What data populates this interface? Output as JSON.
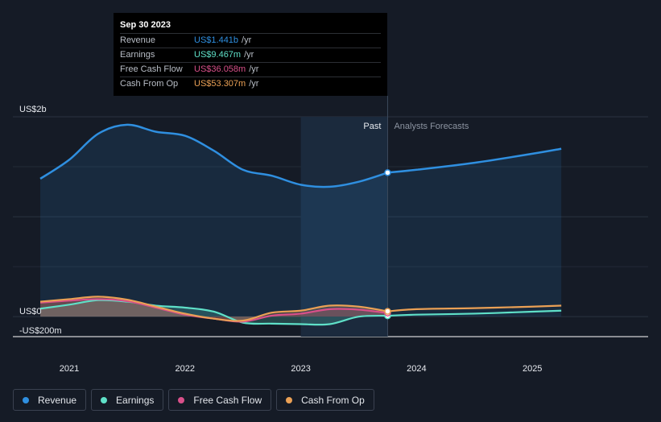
{
  "tooltip": {
    "date": "Sep 30 2023",
    "rows": [
      {
        "label": "Revenue",
        "value": "US$1.441b",
        "unit": "/yr",
        "color": "#2f8fe0"
      },
      {
        "label": "Earnings",
        "value": "US$9.467m",
        "unit": "/yr",
        "color": "#5fe0c8"
      },
      {
        "label": "Free Cash Flow",
        "value": "US$36.058m",
        "unit": "/yr",
        "color": "#d9508a"
      },
      {
        "label": "Cash From Op",
        "value": "US$53.307m",
        "unit": "/yr",
        "color": "#eaa055"
      }
    ]
  },
  "regions": {
    "past": "Past",
    "forecast": "Analysts Forecasts"
  },
  "legend": [
    {
      "label": "Revenue",
      "color": "#2f8fe0"
    },
    {
      "label": "Earnings",
      "color": "#5fe0c8"
    },
    {
      "label": "Free Cash Flow",
      "color": "#d9508a"
    },
    {
      "label": "Cash From Op",
      "color": "#eaa055"
    }
  ],
  "chart_data": {
    "type": "line",
    "y_unit": "US$ millions",
    "ylim": [
      -200,
      2000
    ],
    "y_tick_labels": [
      {
        "value": 2000,
        "label": "US$2b"
      },
      {
        "value": 0,
        "label": "US$0"
      },
      {
        "value": -200,
        "label": "-US$200m"
      }
    ],
    "x_tick_labels": [
      {
        "value": 2021.0,
        "label": "2021"
      },
      {
        "value": 2022.0,
        "label": "2022"
      },
      {
        "value": 2023.0,
        "label": "2023"
      },
      {
        "value": 2024.0,
        "label": "2024"
      },
      {
        "value": 2025.0,
        "label": "2025"
      }
    ],
    "xlim": [
      2020.9,
      2025.25
    ],
    "past_end": 2023.75,
    "highlight_start": 2023.0,
    "series": [
      {
        "name": "Revenue",
        "color": "#2f8fe0",
        "filled": true,
        "past": [
          [
            2020.75,
            1380
          ],
          [
            2021.0,
            1570
          ],
          [
            2021.25,
            1830
          ],
          [
            2021.5,
            1920
          ],
          [
            2021.75,
            1850
          ],
          [
            2022.0,
            1810
          ],
          [
            2022.25,
            1660
          ],
          [
            2022.5,
            1470
          ],
          [
            2022.75,
            1410
          ],
          [
            2023.0,
            1320
          ],
          [
            2023.25,
            1300
          ],
          [
            2023.5,
            1350
          ],
          [
            2023.75,
            1441
          ]
        ],
        "forecast": [
          [
            2023.75,
            1441
          ],
          [
            2024.0,
            1470
          ],
          [
            2024.5,
            1540
          ],
          [
            2025.0,
            1630
          ],
          [
            2025.25,
            1680
          ]
        ]
      },
      {
        "name": "Earnings",
        "color": "#5fe0c8",
        "filled": false,
        "past": [
          [
            2020.75,
            80
          ],
          [
            2021.0,
            120
          ],
          [
            2021.25,
            165
          ],
          [
            2021.5,
            150
          ],
          [
            2021.75,
            110
          ],
          [
            2022.0,
            90
          ],
          [
            2022.25,
            50
          ],
          [
            2022.5,
            -60
          ],
          [
            2022.75,
            -70
          ],
          [
            2023.0,
            -75
          ],
          [
            2023.25,
            -75
          ],
          [
            2023.5,
            0
          ],
          [
            2023.75,
            9
          ]
        ],
        "forecast": [
          [
            2023.75,
            9
          ],
          [
            2024.0,
            20
          ],
          [
            2024.5,
            30
          ],
          [
            2025.0,
            50
          ],
          [
            2025.25,
            60
          ]
        ]
      },
      {
        "name": "Free Cash Flow",
        "color": "#d9508a",
        "filled": false,
        "past": [
          [
            2020.75,
            140
          ],
          [
            2021.0,
            160
          ],
          [
            2021.25,
            175
          ],
          [
            2021.5,
            155
          ],
          [
            2021.75,
            90
          ],
          [
            2022.0,
            20
          ],
          [
            2022.25,
            -20
          ],
          [
            2022.5,
            -50
          ],
          [
            2022.75,
            10
          ],
          [
            2023.0,
            30
          ],
          [
            2023.25,
            75
          ],
          [
            2023.5,
            70
          ],
          [
            2023.75,
            36
          ]
        ],
        "forecast": []
      },
      {
        "name": "Cash From Op",
        "color": "#eaa055",
        "filled": false,
        "past": [
          [
            2020.75,
            150
          ],
          [
            2021.0,
            175
          ],
          [
            2021.25,
            200
          ],
          [
            2021.5,
            170
          ],
          [
            2021.75,
            100
          ],
          [
            2022.0,
            30
          ],
          [
            2022.25,
            -20
          ],
          [
            2022.5,
            -40
          ],
          [
            2022.75,
            40
          ],
          [
            2023.0,
            60
          ],
          [
            2023.25,
            110
          ],
          [
            2023.5,
            100
          ],
          [
            2023.75,
            53
          ]
        ],
        "forecast": [
          [
            2023.75,
            53
          ],
          [
            2024.0,
            75
          ],
          [
            2024.5,
            85
          ],
          [
            2025.0,
            100
          ],
          [
            2025.25,
            110
          ]
        ]
      }
    ]
  }
}
